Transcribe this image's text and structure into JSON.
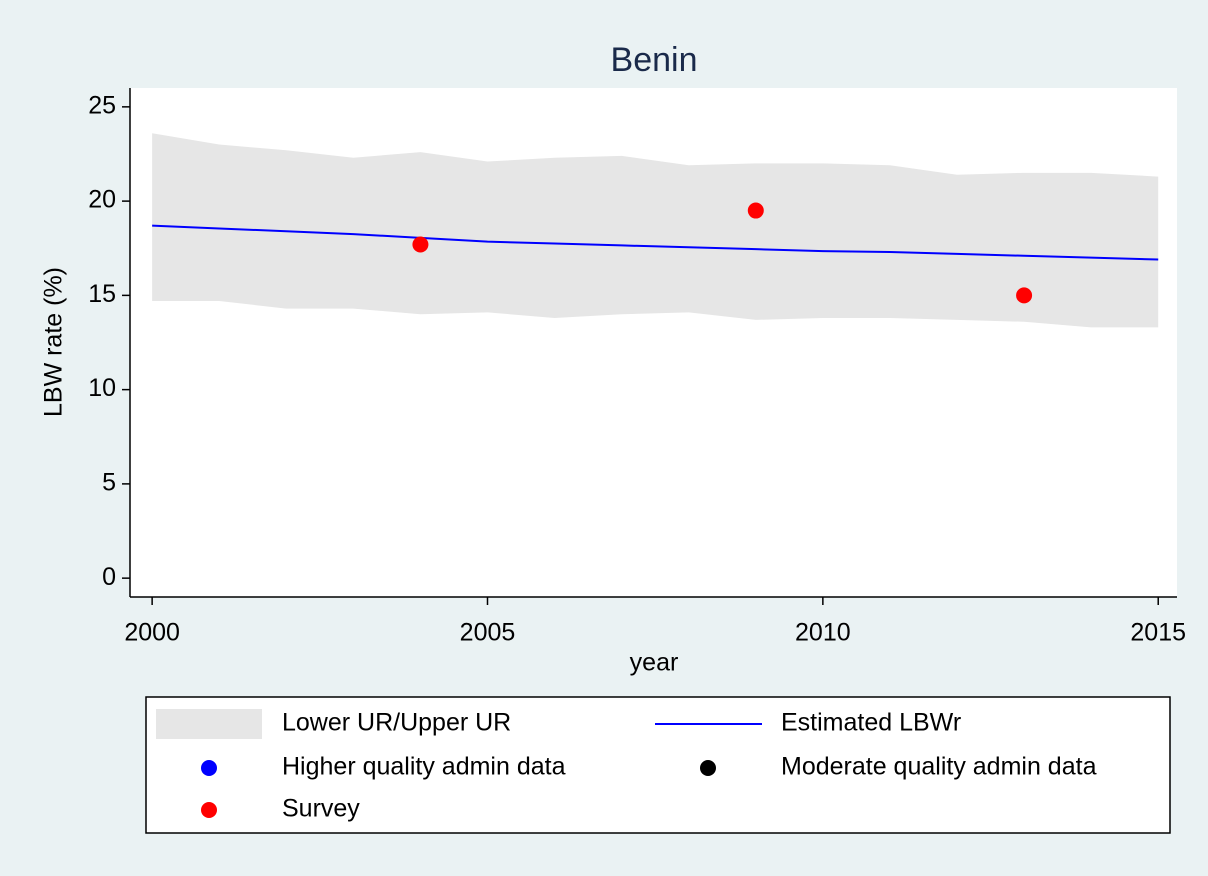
{
  "chart_data": {
    "type": "line",
    "title": "Benin",
    "x_label": "year",
    "y_label": "LBW rate (%)",
    "x": [
      2000,
      2001,
      2002,
      2003,
      2004,
      2005,
      2006,
      2007,
      2008,
      2009,
      2010,
      2011,
      2012,
      2013,
      2014,
      2015
    ],
    "xlim": [
      1999.67,
      2015.28
    ],
    "ylim": [
      -1.0,
      26.0
    ],
    "xticks": [
      2000,
      2005,
      2010,
      2015
    ],
    "yticks": [
      0,
      5,
      10,
      15,
      20,
      25
    ],
    "series": [
      {
        "name": "Lower UR/Upper UR",
        "kind": "band",
        "color": "#e6e6e6",
        "lower": [
          14.7,
          14.7,
          14.3,
          14.3,
          14.0,
          14.1,
          13.8,
          14.0,
          14.1,
          13.7,
          13.8,
          13.8,
          13.7,
          13.6,
          13.3,
          13.3
        ],
        "upper": [
          23.6,
          23.0,
          22.7,
          22.3,
          22.6,
          22.1,
          22.3,
          22.4,
          21.9,
          22.0,
          22.0,
          21.9,
          21.4,
          21.5,
          21.5,
          21.3
        ]
      },
      {
        "name": "Estimated LBWr",
        "kind": "line",
        "color": "#0000ff",
        "values": [
          18.7,
          18.55,
          18.4,
          18.25,
          18.05,
          17.85,
          17.75,
          17.65,
          17.55,
          17.45,
          17.35,
          17.3,
          17.2,
          17.1,
          17.0,
          16.9
        ]
      },
      {
        "name": "Higher quality admin data",
        "kind": "scatter",
        "color": "#0000ff",
        "x": [],
        "values": []
      },
      {
        "name": "Moderate quality admin data",
        "kind": "scatter",
        "color": "#000000",
        "x": [],
        "values": []
      },
      {
        "name": "Survey",
        "kind": "scatter",
        "color": "#ff0000",
        "x": [
          2004,
          2009,
          2013
        ],
        "values": [
          17.7,
          19.5,
          15.0
        ]
      }
    ]
  }
}
